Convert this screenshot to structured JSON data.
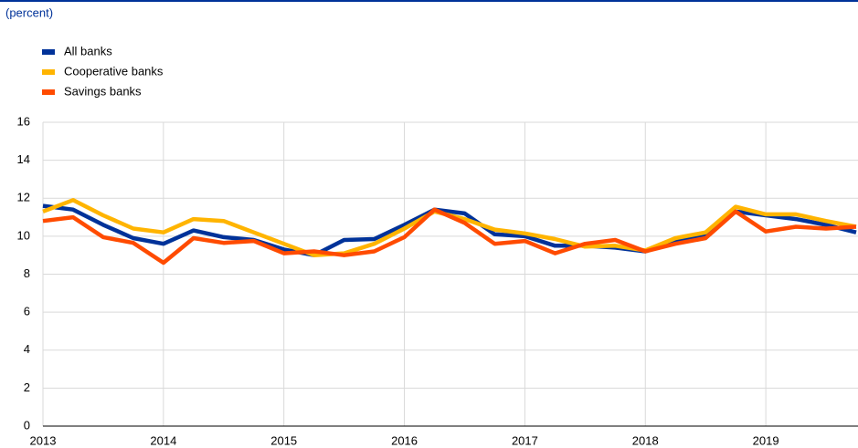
{
  "chart_data": {
    "type": "line",
    "subtitle": "(percent)",
    "categories": [
      "2013",
      null,
      null,
      null,
      "2014",
      null,
      null,
      null,
      "2015",
      null,
      null,
      null,
      "2016",
      null,
      null,
      null,
      "2017",
      null,
      null,
      null,
      "2018",
      null,
      null,
      null,
      "2019",
      null,
      null,
      null
    ],
    "series": [
      {
        "name": "All banks",
        "color": "#003299",
        "values": [
          11.6,
          11.4,
          10.6,
          9.9,
          9.6,
          10.3,
          9.95,
          9.8,
          9.3,
          9.0,
          9.8,
          9.85,
          10.6,
          11.4,
          11.2,
          10.1,
          10.0,
          9.5,
          9.5,
          9.4,
          9.2,
          9.7,
          10.0,
          11.3,
          11.1,
          10.9,
          10.6,
          10.2
        ]
      },
      {
        "name": "Cooperative banks",
        "color": "#ffb400",
        "values": [
          11.3,
          11.9,
          11.1,
          10.4,
          10.2,
          10.9,
          10.8,
          10.2,
          9.6,
          9.0,
          9.1,
          9.6,
          10.4,
          11.3,
          10.9,
          10.35,
          10.15,
          9.85,
          9.45,
          9.5,
          9.25,
          9.9,
          10.2,
          11.55,
          11.15,
          11.15,
          10.8,
          10.5
        ]
      },
      {
        "name": "Savings banks",
        "color": "#ff4b00",
        "values": [
          10.8,
          11.0,
          9.95,
          9.65,
          8.6,
          9.9,
          9.65,
          9.75,
          9.1,
          9.2,
          9.0,
          9.2,
          9.95,
          11.4,
          10.7,
          9.6,
          9.75,
          9.1,
          9.6,
          9.8,
          9.2,
          9.6,
          9.9,
          11.3,
          10.25,
          10.5,
          10.4,
          10.5
        ]
      }
    ],
    "ylim": [
      0,
      16
    ],
    "yticks": [
      0,
      2,
      4,
      6,
      8,
      10,
      12,
      14,
      16
    ],
    "grid": true
  }
}
